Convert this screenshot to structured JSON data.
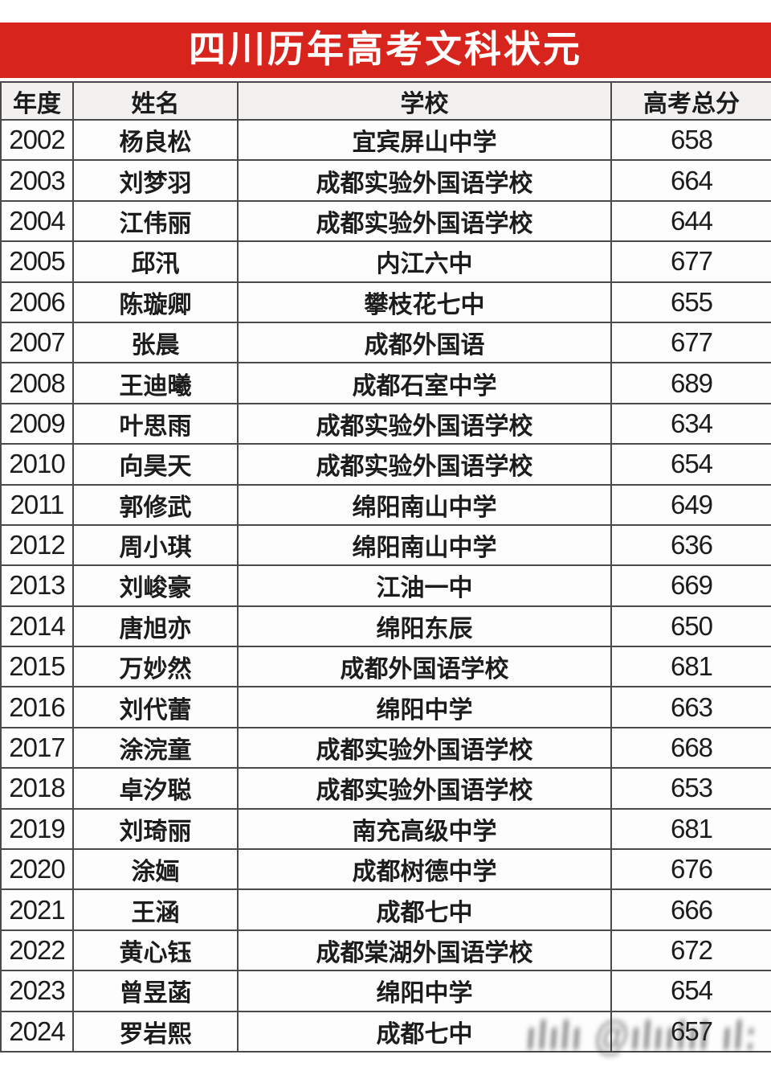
{
  "title": {
    "text": "四川历年高考文科状元"
  },
  "colors": {
    "accent_red": "#d7251d",
    "header_bg": "#f3f1ef",
    "border": "#4a4a4a",
    "text": "#1c1c1c"
  },
  "chart_data": {
    "type": "table",
    "title": "四川历年高考文科状元",
    "columns": [
      "年度",
      "姓名",
      "学校",
      "高考总分"
    ],
    "rows": [
      [
        2002,
        "杨良松",
        "宜宾屏山中学",
        658
      ],
      [
        2003,
        "刘梦羽",
        "成都实验外国语学校",
        664
      ],
      [
        2004,
        "江伟丽",
        "成都实验外国语学校",
        644
      ],
      [
        2005,
        "邱汛",
        "内江六中",
        677
      ],
      [
        2006,
        "陈璇卿",
        "攀枝花七中",
        655
      ],
      [
        2007,
        "张晨",
        "成都外国语",
        677
      ],
      [
        2008,
        "王迪曦",
        "成都石室中学",
        689
      ],
      [
        2009,
        "叶思雨",
        "成都实验外国语学校",
        634
      ],
      [
        2010,
        "向昊天",
        "成都实验外国语学校",
        654
      ],
      [
        2011,
        "郭修武",
        "绵阳南山中学",
        649
      ],
      [
        2012,
        "周小琪",
        "绵阳南山中学",
        636
      ],
      [
        2013,
        "刘峻豪",
        "江油一中",
        669
      ],
      [
        2014,
        "唐旭亦",
        "绵阳东辰",
        650
      ],
      [
        2015,
        "万妙然",
        "成都外国语学校",
        681
      ],
      [
        2016,
        "刘代蕾",
        "绵阳中学",
        663
      ],
      [
        2017,
        "涂浣童",
        "成都实验外国语学校",
        668
      ],
      [
        2018,
        "卓汐聪",
        "成都实验外国语学校",
        653
      ],
      [
        2019,
        "刘琦丽",
        "南充高级中学",
        681
      ],
      [
        2020,
        "涂婳",
        "成都树德中学",
        676
      ],
      [
        2021,
        "王涵",
        "成都七中",
        666
      ],
      [
        2022,
        "黄心钰",
        "成都棠湖外国语学校",
        672
      ],
      [
        2023,
        "曾昱菡",
        "绵阳中学",
        654
      ],
      [
        2024,
        "罗岩熙",
        "成都七中",
        657
      ]
    ]
  },
  "watermark": {
    "text": "ılılı @ılıılıl ıl:"
  }
}
